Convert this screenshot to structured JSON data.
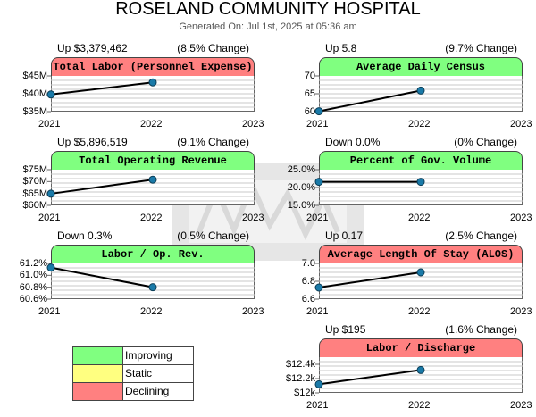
{
  "report": {
    "title": "ROSELAND COMMUNITY HOSPITAL",
    "subtitle": "Generated On: Jul 1st, 2025 at 05:36 am"
  },
  "legend": [
    {
      "label": "Improving",
      "color": "#80ff80"
    },
    {
      "label": "Static",
      "color": "#ffff80"
    },
    {
      "label": "Declining",
      "color": "#ff8080"
    }
  ],
  "colors": {
    "improving": "#80ff80",
    "declining": "#ff8080",
    "line": "#000000",
    "point": "#1a7aa8",
    "grid": "#c8c8c8"
  },
  "chart_data": [
    {
      "type": "line",
      "title": "Total Labor (Personnel Expense)",
      "change_left": "Up $3,379,462",
      "change_right": "(8.5% Change)",
      "status": "declining",
      "x": [
        "2021",
        "2022"
      ],
      "x_ticks": [
        "2021",
        "2022",
        "2023"
      ],
      "values": [
        39.8,
        43.2
      ],
      "ylim": [
        35,
        45
      ],
      "y_ticks": [
        35,
        40,
        45
      ],
      "y_tick_labels": [
        "$35M",
        "$40M",
        "$45M"
      ]
    },
    {
      "type": "line",
      "title": "Average Daily Census",
      "change_left": "Up 5.8",
      "change_right": "(9.7% Change)",
      "status": "improving",
      "x": [
        "2021",
        "2022"
      ],
      "x_ticks": [
        "2021",
        "2022",
        "2023"
      ],
      "values": [
        60.1,
        65.9
      ],
      "ylim": [
        60,
        70
      ],
      "y_ticks": [
        60,
        65,
        70
      ],
      "y_tick_labels": [
        "60",
        "65",
        "70"
      ]
    },
    {
      "type": "line",
      "title": "Total Operating Revenue",
      "change_left": "Up $5,896,519",
      "change_right": "(9.1% Change)",
      "status": "improving",
      "x": [
        "2021",
        "2022"
      ],
      "x_ticks": [
        "2021",
        "2022",
        "2023"
      ],
      "values": [
        64.9,
        70.8
      ],
      "ylim": [
        60,
        75
      ],
      "y_ticks": [
        60,
        65,
        70,
        75
      ],
      "y_tick_labels": [
        "$60M",
        "$65M",
        "$70M",
        "$75M"
      ]
    },
    {
      "type": "line",
      "title": "Percent of Gov. Volume",
      "change_left": "Down 0.0%",
      "change_right": "(0% Change)",
      "status": "improving",
      "x": [
        "2021",
        "2022"
      ],
      "x_ticks": [
        "2021",
        "2022",
        "2023"
      ],
      "values": [
        21.6,
        21.6
      ],
      "ylim": [
        15,
        25
      ],
      "y_ticks": [
        15,
        20,
        25
      ],
      "y_tick_labels": [
        "15.0%",
        "20.0%",
        "25.0%"
      ]
    },
    {
      "type": "line",
      "title": "Labor / Op. Rev.",
      "change_left": "Down 0.3%",
      "change_right": "(0.5% Change)",
      "status": "improving",
      "x": [
        "2021",
        "2022"
      ],
      "x_ticks": [
        "2021",
        "2022",
        "2023"
      ],
      "values": [
        61.13,
        60.8
      ],
      "ylim": [
        60.6,
        61.2
      ],
      "y_ticks": [
        60.6,
        60.8,
        61.0,
        61.2
      ],
      "y_tick_labels": [
        "60.6%",
        "60.8%",
        "61.0%",
        "61.2%"
      ]
    },
    {
      "type": "line",
      "title": "Average Length Of Stay (ALOS)",
      "change_left": "Up 0.17",
      "change_right": "(2.5% Change)",
      "status": "declining",
      "x": [
        "2021",
        "2022"
      ],
      "x_ticks": [
        "2021",
        "2022",
        "2023"
      ],
      "values": [
        6.73,
        6.9
      ],
      "ylim": [
        6.6,
        7.0
      ],
      "y_ticks": [
        6.6,
        6.8,
        7.0
      ],
      "y_tick_labels": [
        "6.6",
        "6.8",
        "7.0"
      ]
    },
    {
      "type": "line",
      "title": "Labor / Discharge",
      "change_left": "Up $195",
      "change_right": "(1.6% Change)",
      "status": "declining",
      "x": [
        "2021",
        "2022"
      ],
      "x_ticks": [
        "2021",
        "2022",
        "2023"
      ],
      "values": [
        12.12,
        12.32
      ],
      "ylim": [
        12.0,
        12.5
      ],
      "y_ticks": [
        12.0,
        12.2,
        12.4
      ],
      "y_tick_labels": [
        "$12k",
        "$12.2k",
        "$12.4k"
      ]
    }
  ]
}
